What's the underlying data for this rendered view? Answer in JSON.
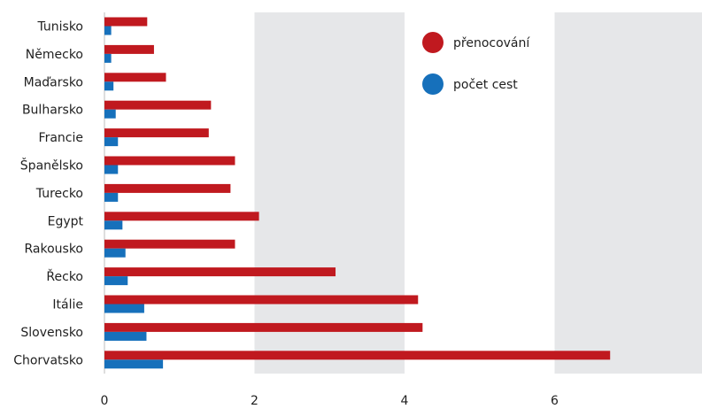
{
  "chart_data": {
    "type": "bar",
    "orientation": "horizontal",
    "categories": [
      "Tunisko",
      "Německo",
      "Maďarsko",
      "Bulharsko",
      "Francie",
      "Španělsko",
      "Turecko",
      "Egypt",
      "Rakousko",
      "Řecko",
      "Itálie",
      "Slovensko",
      "Chorvatsko"
    ],
    "series": [
      {
        "name": "přenocování",
        "color": "#c0191f",
        "values": [
          0.57,
          0.66,
          0.82,
          1.42,
          1.39,
          1.74,
          1.68,
          2.06,
          1.74,
          3.08,
          4.18,
          4.24,
          6.74
        ]
      },
      {
        "name": "počet cest",
        "color": "#1670bb",
        "values": [
          0.09,
          0.09,
          0.12,
          0.15,
          0.18,
          0.18,
          0.18,
          0.24,
          0.28,
          0.31,
          0.53,
          0.56,
          0.78
        ]
      }
    ],
    "xlim": [
      0,
      8
    ],
    "xticks": [
      "0",
      "2",
      "4",
      "6",
      "8"
    ],
    "grid": "alternating shaded bands between ticks",
    "band_color": "#e6e7e9",
    "legend_placement": "top-right"
  }
}
